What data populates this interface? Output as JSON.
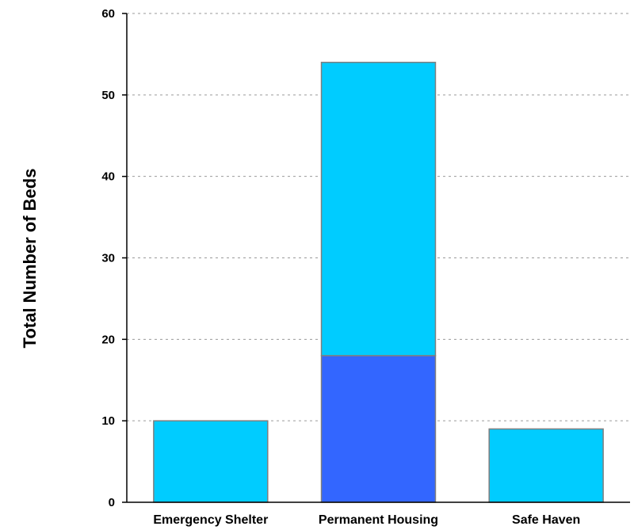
{
  "chart_data": {
    "type": "bar",
    "stacked": true,
    "title": "",
    "xlabel": "",
    "ylabel": "Total Number of Beds",
    "ylim": [
      0,
      60
    ],
    "yticks": [
      0,
      10,
      20,
      30,
      40,
      50,
      60
    ],
    "grid": true,
    "legend": "none",
    "categories": [
      "Emergency Shelter",
      "Permanent Housing",
      "Safe Haven"
    ],
    "series": [
      {
        "values": [
          0,
          18,
          0
        ],
        "color": "#3366ff"
      },
      {
        "values": [
          10,
          36,
          9
        ],
        "color": "#00ccff"
      }
    ]
  }
}
